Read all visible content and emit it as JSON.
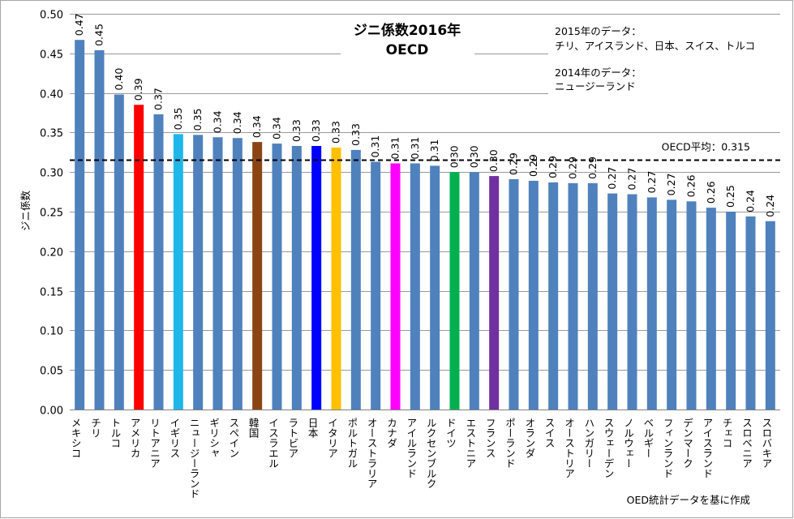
{
  "chart_data": {
    "type": "bar",
    "title_line1": "ジニ係数2016年",
    "title_line2": "OECD",
    "ylabel": "ジニ係数",
    "xlabel": "",
    "ylim": [
      0,
      0.5
    ],
    "ytick_step": 0.05,
    "grid": true,
    "default_color": "#4f81bd",
    "categories": [
      "メキシコ",
      "チリ",
      "トルコ",
      "アメリカ",
      "リトアニア",
      "イギリス",
      "ニュージーランド",
      "ギリシャ",
      "スペイン",
      "韓国",
      "イスラエル",
      "ラトビア",
      "日本",
      "イタリア",
      "ポルトガル",
      "オーストラリア",
      "カナダ",
      "アイルランド",
      "ルクセンブルク",
      "ドイツ",
      "エストニア",
      "フランス",
      "ポーランド",
      "オランダ",
      "スイス",
      "オーストリア",
      "ハンガリー",
      "スウェーデン",
      "ノルウェー",
      "ベルギー",
      "フィンランド",
      "デンマーク",
      "アイスランド",
      "チェコ",
      "スロベニア",
      "スロバキア"
    ],
    "values": [
      0.467,
      0.454,
      0.398,
      0.385,
      0.373,
      0.348,
      0.347,
      0.344,
      0.343,
      0.338,
      0.336,
      0.333,
      0.333,
      0.331,
      0.328,
      0.313,
      0.311,
      0.311,
      0.308,
      0.3,
      0.3,
      0.295,
      0.291,
      0.289,
      0.287,
      0.286,
      0.286,
      0.273,
      0.272,
      0.268,
      0.265,
      0.263,
      0.255,
      0.25,
      0.244,
      0.238
    ],
    "labels": [
      "0.47",
      "0.45",
      "0.40",
      "0.39",
      "0.37",
      "0.35",
      "0.35",
      "0.34",
      "0.34",
      "0.34",
      "0.34",
      "0.33",
      "0.33",
      "0.33",
      "0.33",
      "0.31",
      "0.31",
      "0.31",
      "0.31",
      "0.30",
      "0.30",
      "0.30",
      "0.29",
      "0.29",
      "0.29",
      "0.29",
      "0.29",
      "0.27",
      "0.27",
      "0.27",
      "0.27",
      "0.26",
      "0.26",
      "0.25",
      "0.24",
      "0.24"
    ],
    "highlights": {
      "アメリカ": "#ff0000",
      "イギリス": "#1fb7ea",
      "韓国": "#8b4513",
      "日本": "#0000ff",
      "イタリア": "#ffc000",
      "カナダ": "#ff00ff",
      "ドイツ": "#00b050",
      "フランス": "#7030a0"
    },
    "reference_line": {
      "value": 0.315,
      "label": "OECD平均：0.315",
      "style": "dashed",
      "color": "#000000"
    },
    "notes": [
      "2015年のデータ：",
      "チリ、アイスランド、日本、スイス、トルコ",
      "2014年のデータ：",
      "ニュージーランド"
    ],
    "source": "OED統計データを基に作成"
  }
}
